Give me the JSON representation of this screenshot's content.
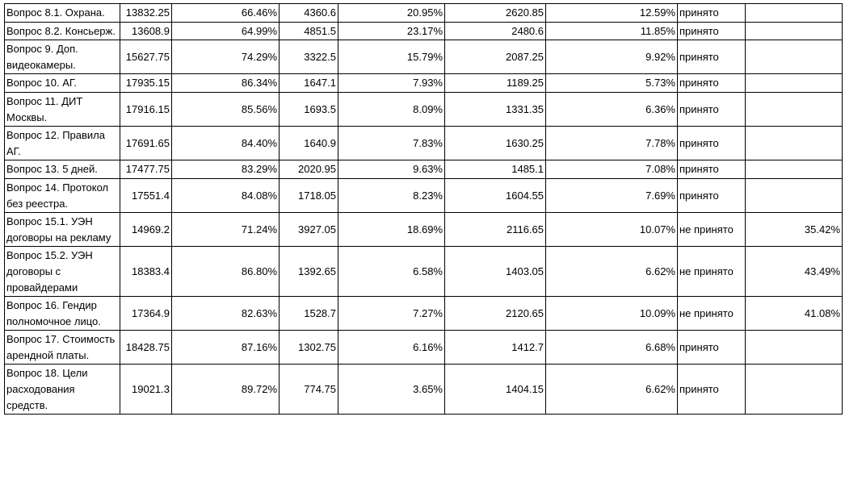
{
  "table": {
    "rows": [
      [
        "Вопрос 8.1. Охрана.",
        "13832.25",
        "66.46%",
        "4360.6",
        "20.95%",
        "2620.85",
        "12.59%",
        "принято"
      ],
      [
        "Вопрос 8.2. Консьерж.",
        "13608.9",
        "64.99%",
        "4851.5",
        "23.17%",
        "2480.6",
        "11.85%",
        "принято"
      ],
      [
        "Вопрос 9. Доп. видеокамеры.",
        "15627.75",
        "74.29%",
        "3322.5",
        "15.79%",
        "2087.25",
        "9.92%",
        "принято"
      ],
      [
        "Вопрос 10. АГ.",
        "17935.15",
        "86.34%",
        "1647.1",
        "7.93%",
        "1189.25",
        "5.73%",
        "принято"
      ],
      [
        "Вопрос 11. ДИТ Москвы.",
        "17916.15",
        "85.56%",
        "1693.5",
        "8.09%",
        "1331.35",
        "6.36%",
        "принято"
      ],
      [
        "Вопрос 12. Правила АГ.",
        "17691.65",
        "84.40%",
        "1640.9",
        "7.83%",
        "1630.25",
        "7.78%",
        "принято"
      ],
      [
        "Вопрос 13. 5 дней.",
        "17477.75",
        "83.29%",
        "2020.95",
        "9.63%",
        "1485.1",
        "7.08%",
        "принято"
      ],
      [
        "Вопрос 14. Протокол без реестра.",
        "17551.4",
        "84.08%",
        "1718.05",
        "8.23%",
        "1604.55",
        "7.69%",
        "принято"
      ],
      [
        "Вопрос 15.1. УЭН договоры на рекламу",
        "14969.2",
        "71.24%",
        "3927.05",
        "18.69%",
        "2116.65",
        "10.07%",
        "не принято",
        "35.42%"
      ],
      [
        "Вопрос 15.2. УЭН договоры с провайдерами",
        "18383.4",
        "86.80%",
        "1392.65",
        "6.58%",
        "1403.05",
        "6.62%",
        "не принято",
        "43.49%"
      ],
      [
        "Вопрос 16. Гендир полномочное лицо.",
        "17364.9",
        "82.63%",
        "1528.7",
        "7.27%",
        "2120.65",
        "10.09%",
        "не принято",
        "41.08%"
      ],
      [
        "Вопрос 17. Стоимость арендной платы.",
        "18428.75",
        "87.16%",
        "1302.75",
        "6.16%",
        "1412.7",
        "6.68%",
        "принято"
      ],
      [
        "Вопрос 18. Цели расходования средств.",
        "19021.3",
        "89.72%",
        "774.75",
        "3.65%",
        "1404.15",
        "6.62%",
        "принято"
      ]
    ]
  }
}
